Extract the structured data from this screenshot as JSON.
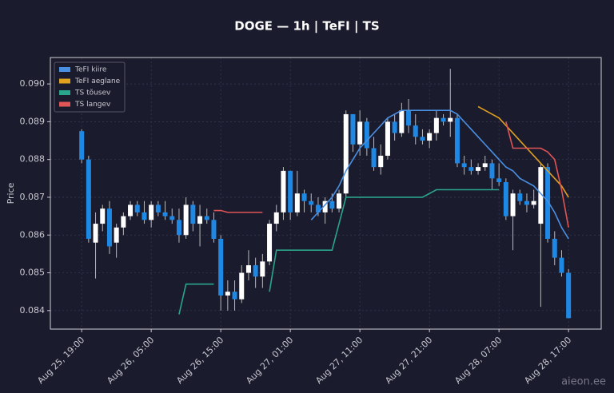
{
  "chart_data": {
    "type": "candlestick",
    "title": "DOGE — 1h  |  TeFI  |  TS",
    "ylabel": "Price",
    "watermark": "aieon.ee",
    "x": [
      "Aug 25, 19:00",
      "Aug 25, 20:00",
      "Aug 25, 21:00",
      "Aug 25, 22:00",
      "Aug 25, 23:00",
      "Aug 26, 00:00",
      "Aug 26, 01:00",
      "Aug 26, 02:00",
      "Aug 26, 03:00",
      "Aug 26, 04:00",
      "Aug 26, 05:00",
      "Aug 26, 06:00",
      "Aug 26, 07:00",
      "Aug 26, 08:00",
      "Aug 26, 09:00",
      "Aug 26, 10:00",
      "Aug 26, 11:00",
      "Aug 26, 12:00",
      "Aug 26, 13:00",
      "Aug 26, 14:00",
      "Aug 26, 15:00",
      "Aug 26, 16:00",
      "Aug 26, 17:00",
      "Aug 26, 18:00",
      "Aug 26, 19:00",
      "Aug 26, 20:00",
      "Aug 26, 21:00",
      "Aug 26, 22:00",
      "Aug 26, 23:00",
      "Aug 27, 00:00",
      "Aug 27, 01:00",
      "Aug 27, 02:00",
      "Aug 27, 03:00",
      "Aug 27, 04:00",
      "Aug 27, 05:00",
      "Aug 27, 06:00",
      "Aug 27, 07:00",
      "Aug 27, 08:00",
      "Aug 27, 09:00",
      "Aug 27, 10:00",
      "Aug 27, 11:00",
      "Aug 27, 12:00",
      "Aug 27, 13:00",
      "Aug 27, 14:00",
      "Aug 27, 15:00",
      "Aug 27, 16:00",
      "Aug 27, 17:00",
      "Aug 27, 18:00",
      "Aug 27, 19:00",
      "Aug 27, 20:00",
      "Aug 27, 21:00",
      "Aug 27, 22:00",
      "Aug 27, 23:00",
      "Aug 28, 00:00",
      "Aug 28, 01:00",
      "Aug 28, 02:00",
      "Aug 28, 03:00",
      "Aug 28, 04:00",
      "Aug 28, 05:00",
      "Aug 28, 06:00",
      "Aug 28, 07:00",
      "Aug 28, 08:00",
      "Aug 28, 09:00",
      "Aug 28, 10:00",
      "Aug 28, 11:00",
      "Aug 28, 12:00",
      "Aug 28, 13:00",
      "Aug 28, 14:00",
      "Aug 28, 15:00",
      "Aug 28, 16:00",
      "Aug 28, 17:00"
    ],
    "open": [
      0.08875,
      0.088,
      0.0858,
      0.0863,
      0.0867,
      0.0858,
      0.0862,
      0.0865,
      0.0868,
      0.0866,
      0.0864,
      0.0868,
      0.0866,
      0.0865,
      0.0864,
      0.086,
      0.0868,
      0.0863,
      0.0865,
      0.0864,
      0.0859,
      0.0844,
      0.0845,
      0.0843,
      0.085,
      0.0852,
      0.0849,
      0.0853,
      0.0863,
      0.0866,
      0.0877,
      0.0866,
      0.0871,
      0.0869,
      0.0868,
      0.0866,
      0.0869,
      0.0867,
      0.0871,
      0.0892,
      0.0884,
      0.089,
      0.0883,
      0.0878,
      0.0881,
      0.089,
      0.0887,
      0.0893,
      0.0889,
      0.0886,
      0.0885,
      0.0887,
      0.0891,
      0.089,
      0.0891,
      0.0879,
      0.0878,
      0.0877,
      0.0878,
      0.0879,
      0.0875,
      0.0874,
      0.0865,
      0.0871,
      0.0869,
      0.0868,
      0.0863,
      0.0878,
      0.0859,
      0.0854,
      0.085
    ],
    "high": [
      0.0888,
      0.0881,
      0.0866,
      0.0868,
      0.0869,
      0.0863,
      0.0866,
      0.0869,
      0.0869,
      0.0869,
      0.0869,
      0.0869,
      0.0869,
      0.0867,
      0.0867,
      0.087,
      0.0869,
      0.0868,
      0.0867,
      0.0866,
      0.086,
      0.0848,
      0.0848,
      0.0852,
      0.0856,
      0.0854,
      0.0855,
      0.0864,
      0.0868,
      0.0878,
      0.0877,
      0.0877,
      0.0872,
      0.0871,
      0.087,
      0.087,
      0.0871,
      0.0872,
      0.0893,
      0.0892,
      0.0893,
      0.0891,
      0.0886,
      0.0884,
      0.0891,
      0.0892,
      0.0895,
      0.0896,
      0.0892,
      0.0888,
      0.0888,
      0.0893,
      0.0892,
      0.0904,
      0.0892,
      0.0881,
      0.088,
      0.0879,
      0.0881,
      0.088,
      0.0879,
      0.0875,
      0.0872,
      0.0872,
      0.0871,
      0.0872,
      0.0879,
      0.0879,
      0.0861,
      0.0856,
      0.0851
    ],
    "low": [
      0.0879,
      0.0858,
      0.08485,
      0.0861,
      0.0855,
      0.0854,
      0.086,
      0.0864,
      0.0865,
      0.0863,
      0.0862,
      0.0865,
      0.0864,
      0.0863,
      0.0858,
      0.0859,
      0.0861,
      0.0857,
      0.0863,
      0.0858,
      0.084,
      0.084,
      0.084,
      0.0842,
      0.0848,
      0.0846,
      0.0846,
      0.0852,
      0.0861,
      0.0864,
      0.0864,
      0.0865,
      0.0866,
      0.0866,
      0.0865,
      0.0863,
      0.0866,
      0.0866,
      0.087,
      0.0882,
      0.0881,
      0.0881,
      0.0877,
      0.0876,
      0.088,
      0.0885,
      0.0886,
      0.0887,
      0.0884,
      0.0884,
      0.0883,
      0.0885,
      0.0889,
      0.0886,
      0.0878,
      0.0876,
      0.0876,
      0.0876,
      0.0877,
      0.0872,
      0.0873,
      0.0864,
      0.0856,
      0.0868,
      0.0866,
      0.0867,
      0.0841,
      0.0858,
      0.0852,
      0.0849,
      0.0838
    ],
    "close": [
      0.088,
      0.0859,
      0.0863,
      0.0867,
      0.0857,
      0.0862,
      0.0865,
      0.0868,
      0.0866,
      0.0864,
      0.0868,
      0.0866,
      0.0865,
      0.0864,
      0.086,
      0.0868,
      0.0863,
      0.0865,
      0.0864,
      0.0859,
      0.0844,
      0.0845,
      0.0843,
      0.085,
      0.0852,
      0.0849,
      0.0853,
      0.0863,
      0.0866,
      0.0877,
      0.0866,
      0.0871,
      0.0869,
      0.0868,
      0.0866,
      0.0869,
      0.0867,
      0.0871,
      0.0892,
      0.0884,
      0.089,
      0.0883,
      0.0878,
      0.0881,
      0.089,
      0.0887,
      0.0893,
      0.0889,
      0.0886,
      0.0885,
      0.0887,
      0.0891,
      0.089,
      0.0891,
      0.0879,
      0.0878,
      0.0877,
      0.0878,
      0.0879,
      0.0875,
      0.0874,
      0.0865,
      0.0871,
      0.0869,
      0.0868,
      0.0869,
      0.0878,
      0.0859,
      0.0854,
      0.085,
      0.0838
    ],
    "up_color": "#ffffff",
    "down_color": "#1e88e5",
    "series": [
      {
        "name": "TeFI kiire",
        "color": "#4a90e2",
        "values": [
          null,
          null,
          null,
          null,
          null,
          null,
          null,
          null,
          null,
          null,
          null,
          null,
          null,
          null,
          null,
          null,
          null,
          null,
          null,
          null,
          null,
          null,
          null,
          null,
          null,
          null,
          null,
          null,
          null,
          null,
          null,
          null,
          null,
          0.0864,
          0.0866,
          0.0868,
          0.087,
          0.0873,
          0.0877,
          0.088,
          0.0883,
          0.0885,
          0.0887,
          0.0889,
          0.0891,
          0.0892,
          0.0893,
          0.0893,
          0.0893,
          0.0893,
          0.0893,
          0.0893,
          0.0893,
          0.0893,
          0.0892,
          0.089,
          0.0888,
          0.0886,
          0.0884,
          0.0882,
          0.088,
          0.0878,
          0.0877,
          0.0875,
          0.0874,
          0.0873,
          0.0871,
          0.0869,
          0.0866,
          0.0862,
          0.0859
        ]
      },
      {
        "name": "TeFI aeglane",
        "color": "#e0a020",
        "values": [
          null,
          null,
          null,
          null,
          null,
          null,
          null,
          null,
          null,
          null,
          null,
          null,
          null,
          null,
          null,
          null,
          null,
          null,
          null,
          null,
          null,
          null,
          null,
          null,
          null,
          null,
          null,
          null,
          null,
          null,
          null,
          null,
          null,
          null,
          null,
          null,
          null,
          null,
          null,
          null,
          null,
          null,
          null,
          null,
          null,
          null,
          null,
          null,
          null,
          null,
          null,
          null,
          null,
          null,
          null,
          null,
          null,
          0.0894,
          0.0893,
          0.0892,
          0.0891,
          0.0889,
          0.0887,
          0.0885,
          0.0883,
          0.0881,
          0.0879,
          0.0877,
          0.0875,
          0.0873,
          0.087
        ]
      },
      {
        "name": "TS tõusev",
        "color": "#2aa58c",
        "values": [
          null,
          null,
          null,
          null,
          null,
          null,
          null,
          null,
          null,
          null,
          null,
          null,
          null,
          null,
          0.0839,
          0.0847,
          0.0847,
          0.0847,
          0.0847,
          0.0847,
          null,
          null,
          null,
          null,
          null,
          null,
          null,
          0.0845,
          0.0856,
          0.0856,
          0.0856,
          0.0856,
          0.0856,
          0.0856,
          0.0856,
          0.0856,
          0.0856,
          0.0863,
          0.087,
          0.087,
          0.087,
          0.087,
          0.087,
          0.087,
          0.087,
          0.087,
          0.087,
          0.087,
          0.087,
          0.087,
          0.0871,
          0.0872,
          0.0872,
          0.0872,
          0.0872,
          0.0872,
          0.0872,
          0.0872,
          0.0872,
          0.0872,
          0.0872,
          null,
          null,
          null,
          null,
          null,
          null,
          null,
          null,
          null,
          null
        ]
      },
      {
        "name": "TS langev",
        "color": "#e05555",
        "values": [
          null,
          null,
          null,
          null,
          null,
          null,
          null,
          null,
          null,
          null,
          null,
          null,
          null,
          null,
          null,
          null,
          null,
          null,
          null,
          0.08665,
          0.08665,
          0.0866,
          0.0866,
          0.0866,
          0.0866,
          0.0866,
          0.0866,
          null,
          null,
          null,
          null,
          null,
          null,
          null,
          null,
          null,
          null,
          null,
          null,
          null,
          null,
          null,
          null,
          null,
          null,
          null,
          null,
          null,
          null,
          null,
          null,
          null,
          null,
          null,
          null,
          null,
          null,
          null,
          null,
          null,
          null,
          0.089,
          0.0883,
          0.0883,
          0.0883,
          0.0883,
          0.0883,
          0.0882,
          0.088,
          0.0872,
          0.0862
        ]
      }
    ],
    "ylim": [
      0.08351,
      0.0907
    ],
    "yticks": [
      0.084,
      0.085,
      0.086,
      0.087,
      0.088,
      0.089,
      {
        "value": 0.09,
        "label": "0.090"
      }
    ],
    "xticks": [
      "Aug 25, 19:00",
      "Aug 26, 05:00",
      "Aug 26, 15:00",
      "Aug 27, 01:00",
      "Aug 27, 11:00",
      "Aug 27, 21:00",
      "Aug 28, 07:00",
      "Aug 28, 17:00"
    ],
    "grid": true,
    "legend": "upper left"
  }
}
